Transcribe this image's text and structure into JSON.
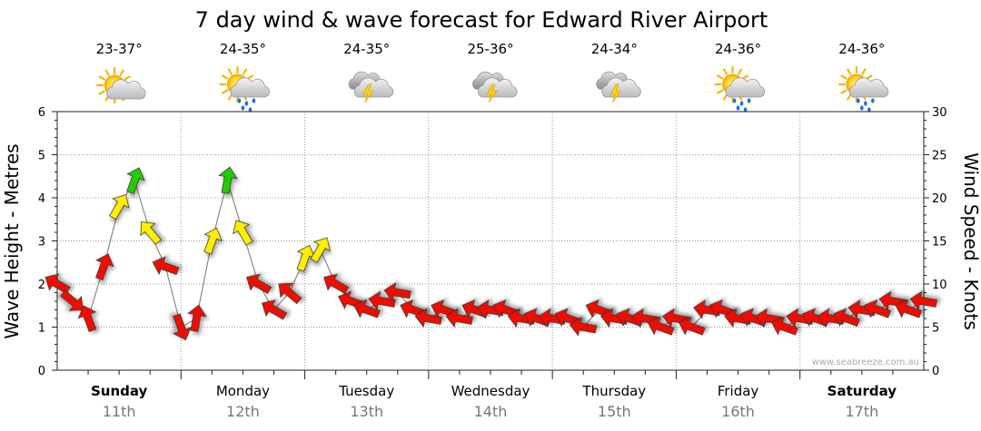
{
  "chart_data": {
    "type": "line",
    "title": "7 day wind & wave forecast for Edward River Airport",
    "ylabel_left": "Wave Height - Metres",
    "ylabel_right": "Wind Speed - Knots",
    "ylim_left": [
      0,
      6
    ],
    "ylim_right": [
      0,
      30
    ],
    "yticks_left": [
      "0",
      "1",
      "2",
      "3",
      "4",
      "5",
      "6"
    ],
    "yticks_right": [
      "0",
      "5",
      "10",
      "15",
      "20",
      "25",
      "30"
    ],
    "days": [
      {
        "day": "Sunday",
        "date": "11th",
        "temp": "23-37°",
        "icon": "sun-cloud-icon",
        "bold": true
      },
      {
        "day": "Monday",
        "date": "12th",
        "temp": "24-35°",
        "icon": "sun-cloud-rain-icon",
        "bold": false
      },
      {
        "day": "Tuesday",
        "date": "13th",
        "temp": "24-35°",
        "icon": "storm-icon",
        "bold": false
      },
      {
        "day": "Wednesday",
        "date": "14th",
        "temp": "25-36°",
        "icon": "storm-icon",
        "bold": false
      },
      {
        "day": "Thursday",
        "date": "15th",
        "temp": "24-34°",
        "icon": "storm-icon",
        "bold": false
      },
      {
        "day": "Friday",
        "date": "16th",
        "temp": "24-36°",
        "icon": "sun-cloud-rain-icon",
        "bold": false
      },
      {
        "day": "Saturday",
        "date": "17th",
        "temp": "24-36°",
        "icon": "sun-cloud-rain-icon",
        "bold": true
      }
    ],
    "wind_series": {
      "name": "Wind speed (knots)",
      "x_hours": [
        0,
        3,
        6,
        9,
        12,
        15,
        18,
        21,
        24,
        27,
        30,
        33,
        36,
        39,
        42,
        45,
        48,
        51,
        54,
        57,
        60,
        63,
        66,
        69,
        72,
        75,
        78,
        81,
        84,
        87,
        90,
        93,
        96,
        99,
        102,
        105,
        108,
        111,
        114,
        117,
        120,
        123,
        126,
        129,
        132,
        135,
        138,
        141,
        144,
        147,
        150,
        153,
        156,
        159,
        162,
        165,
        168
      ],
      "values": [
        10,
        8,
        6,
        12,
        19,
        22,
        16,
        12,
        5,
        6,
        15,
        22,
        16,
        10,
        7,
        9,
        13,
        14,
        10,
        8,
        7,
        8,
        9,
        7,
        6,
        7,
        6,
        7,
        7,
        7,
        6,
        6,
        6,
        6,
        5,
        7,
        6,
        6,
        6,
        5,
        6,
        5,
        7,
        7,
        6,
        6,
        6,
        5,
        6,
        6,
        6,
        6,
        7,
        7,
        8,
        7,
        8
      ],
      "directions_deg": [
        300,
        130,
        340,
        20,
        30,
        20,
        320,
        290,
        160,
        10,
        20,
        10,
        330,
        300,
        300,
        310,
        20,
        30,
        300,
        290,
        290,
        280,
        280,
        290,
        280,
        290,
        280,
        290,
        280,
        290,
        280,
        290,
        280,
        290,
        280,
        290,
        280,
        290,
        280,
        290,
        280,
        290,
        280,
        290,
        280,
        290,
        280,
        290,
        280,
        290,
        280,
        290,
        280,
        290,
        280,
        290,
        280
      ]
    },
    "color_legend": {
      "green_min_knots": 20,
      "yellow_min_knots": 13,
      "red_below_knots": 13,
      "green": "#22cc00",
      "yellow": "#ffee00",
      "red": "#ee1100"
    }
  },
  "credit": "www.seabreeze.com.au"
}
